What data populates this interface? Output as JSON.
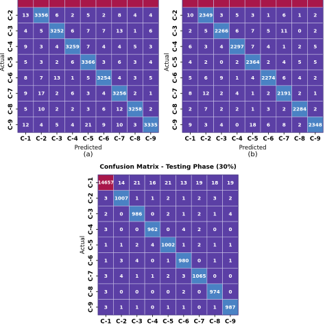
{
  "colors": {
    "low": "#5b3fa5",
    "mid": "#4a82c4",
    "high": "#a8174a",
    "grid": "#c9c3e6"
  },
  "chart_data": [
    {
      "type": "heatmap",
      "panel_label": "(a)",
      "title": "",
      "xlabel": "Predicted",
      "ylabel": "Actual",
      "categories": [
        "C-1",
        "C-2",
        "C-3",
        "C-4",
        "C-5",
        "C-6",
        "C-7",
        "C-8",
        "C-9"
      ],
      "matrix": [
        [
          null,
          null,
          null,
          null,
          null,
          null,
          null,
          null,
          null
        ],
        [
          13,
          3356,
          6,
          2,
          5,
          2,
          8,
          4,
          4
        ],
        [
          4,
          5,
          3252,
          6,
          7,
          7,
          13,
          1,
          6
        ],
        [
          9,
          3,
          4,
          3259,
          7,
          4,
          4,
          5,
          3
        ],
        [
          5,
          3,
          2,
          6,
          3366,
          3,
          6,
          3,
          4
        ],
        [
          8,
          7,
          13,
          1,
          5,
          3254,
          4,
          3,
          5
        ],
        [
          9,
          17,
          2,
          6,
          3,
          4,
          3256,
          2,
          1
        ],
        [
          5,
          10,
          2,
          2,
          3,
          6,
          12,
          3258,
          2
        ],
        [
          12,
          4,
          5,
          4,
          21,
          9,
          10,
          3,
          3335
        ]
      ]
    },
    {
      "type": "heatmap",
      "panel_label": "(b)",
      "title": "",
      "xlabel": "Predicted",
      "ylabel": "Actual",
      "categories": [
        "C-1",
        "C-2",
        "C-3",
        "C-4",
        "C-5",
        "C-6",
        "C-7",
        "C-8",
        "C-9"
      ],
      "matrix": [
        [
          null,
          null,
          null,
          null,
          null,
          null,
          null,
          null,
          null
        ],
        [
          10,
          2349,
          3,
          5,
          3,
          1,
          6,
          1,
          2
        ],
        [
          2,
          5,
          2266,
          6,
          7,
          5,
          11,
          0,
          2
        ],
        [
          6,
          3,
          4,
          2297,
          7,
          4,
          1,
          2,
          5
        ],
        [
          4,
          2,
          0,
          2,
          2364,
          2,
          4,
          5,
          5
        ],
        [
          5,
          6,
          9,
          1,
          4,
          2274,
          6,
          4,
          2
        ],
        [
          8,
          12,
          2,
          4,
          1,
          2,
          2191,
          2,
          1
        ],
        [
          2,
          7,
          2,
          2,
          1,
          3,
          2,
          2284,
          2
        ],
        [
          9,
          3,
          4,
          0,
          18,
          6,
          8,
          2,
          2348
        ]
      ]
    },
    {
      "type": "heatmap",
      "panel_label": "",
      "title": "Confusion Matrix - Testing Phase (30%)",
      "xlabel": "",
      "ylabel": "Actual",
      "categories": [
        "C-1",
        "C-2",
        "C-3",
        "C-4",
        "C-5",
        "C-6",
        "C-7",
        "C-8",
        "C-9"
      ],
      "matrix": [
        [
          14657,
          14,
          21,
          16,
          21,
          13,
          19,
          18,
          19
        ],
        [
          3,
          1007,
          1,
          1,
          2,
          1,
          2,
          3,
          2
        ],
        [
          2,
          0,
          986,
          0,
          2,
          1,
          2,
          1,
          4
        ],
        [
          3,
          0,
          0,
          962,
          0,
          4,
          2,
          0,
          0
        ],
        [
          1,
          1,
          2,
          4,
          1002,
          1,
          2,
          1,
          1
        ],
        [
          1,
          3,
          4,
          0,
          1,
          980,
          0,
          1,
          1
        ],
        [
          3,
          4,
          1,
          1,
          2,
          3,
          1065,
          0,
          0
        ],
        [
          3,
          0,
          0,
          0,
          0,
          2,
          0,
          974,
          0
        ],
        [
          3,
          1,
          1,
          0,
          1,
          1,
          0,
          1,
          987
        ]
      ]
    }
  ]
}
